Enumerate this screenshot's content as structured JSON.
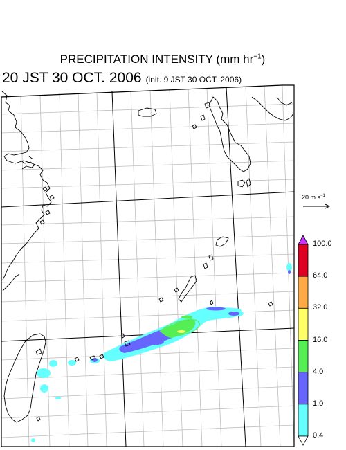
{
  "title": {
    "main": "PRECIPITATION INTENSITY (mm hr",
    "exp": "−1",
    "close": ")",
    "time": "20 JST 30 OCT. 2006",
    "init": "(init. 9 JST 30 OCT. 2006)"
  },
  "vector_ref": {
    "label": "20 m s",
    "exp": "−1"
  },
  "colorbar": {
    "unit": "mm hr-1",
    "levels": [
      "100.0",
      "64.0",
      "32.0",
      "16.0",
      "4.0",
      "1.0",
      "0.4"
    ],
    "colors": [
      "#dd0022",
      "#ffaa44",
      "#ffff66",
      "#55ee55",
      "#6666ff",
      "#66ffff"
    ],
    "over_color": "#cc33ff",
    "under_color": "#ffffff"
  },
  "colors": {
    "coast": "#000000",
    "grid": "#bdbdbd"
  }
}
